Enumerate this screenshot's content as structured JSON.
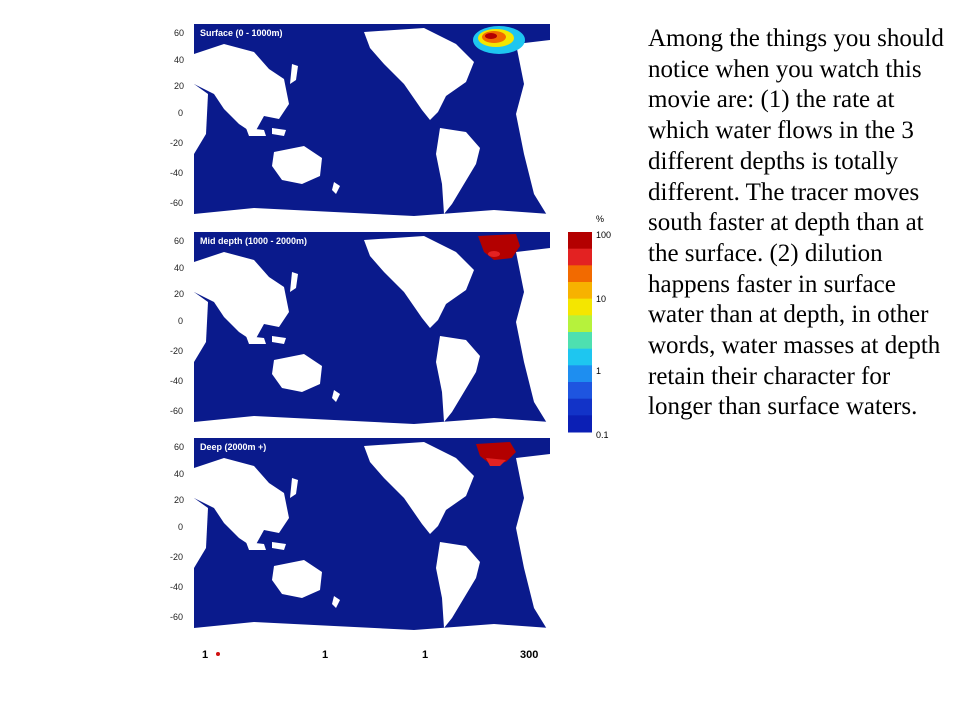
{
  "panels": [
    {
      "title": "Surface (0 - 1000m)",
      "yticks": [
        "60",
        "40",
        "20",
        "0",
        "-20",
        "-40",
        "-60"
      ]
    },
    {
      "title": "Mid depth (1000 - 2000m)",
      "yticks": [
        "60",
        "40",
        "20",
        "0",
        "-20",
        "-40",
        "-60"
      ]
    },
    {
      "title": "Deep (2000m +)",
      "yticks": [
        "60",
        "40",
        "20",
        "0",
        "-20",
        "-40",
        "-60"
      ]
    }
  ],
  "colorbar": {
    "unit": "%",
    "labels": [
      "100",
      "10",
      "1",
      "0.1"
    ],
    "colors": [
      "#b30000",
      "#e32222",
      "#f26a00",
      "#f7b200",
      "#f4e600",
      "#b6f23c",
      "#4ee0b0",
      "#1ec6f0",
      "#1e8ef0",
      "#1e55e0",
      "#1233c8",
      "#0b1fb5"
    ]
  },
  "x_axis": {
    "labels": [
      "1",
      "1",
      "1",
      "300"
    ]
  },
  "caption": "Among the things you should notice when you watch this movie are: (1) the rate at which water flows in the 3 different depths is totally different. The tracer moves south faster at depth than at the surface. (2) dilution happens faster in surface water than at depth, in other words, water masses at depth retain their character for longer than surface waters.",
  "style": {
    "ocean": "#0a1a8c",
    "land": "#ffffff",
    "tracer_hot": "#b30000"
  }
}
